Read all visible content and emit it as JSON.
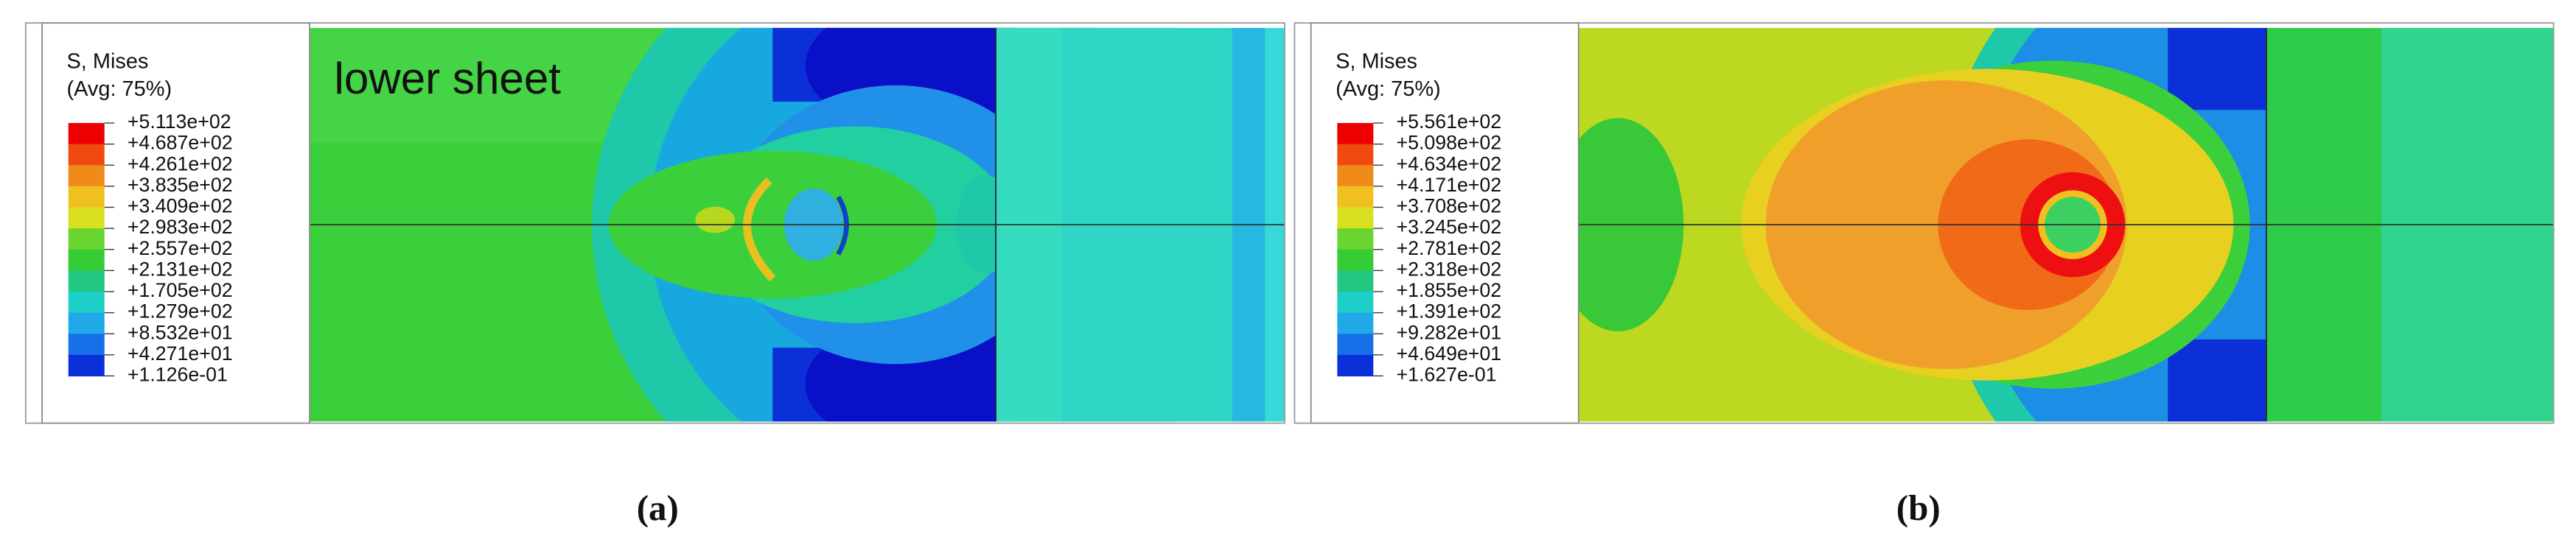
{
  "panels": [
    {
      "legend": {
        "title": "S, Mises",
        "subtitle": "(Avg: 75%)",
        "labels": [
          "+5.113e+02",
          "+4.687e+02",
          "+4.261e+02",
          "+3.835e+02",
          "+3.409e+02",
          "+2.983e+02",
          "+2.557e+02",
          "+2.131e+02",
          "+1.705e+02",
          "+1.279e+02",
          "+8.532e+01",
          "+4.271e+01",
          "+1.126e-01"
        ]
      },
      "annotation": "lower sheet",
      "caption": "(a)"
    },
    {
      "legend": {
        "title": "S, Mises",
        "subtitle": "(Avg: 75%)",
        "labels": [
          "+5.561e+02",
          "+5.098e+02",
          "+4.634e+02",
          "+4.171e+02",
          "+3.708e+02",
          "+3.245e+02",
          "+2.781e+02",
          "+2.318e+02",
          "+1.855e+02",
          "+1.391e+02",
          "+9.282e+01",
          "+4.649e+01",
          "+1.627e-01"
        ]
      },
      "caption": "(b)"
    }
  ]
}
